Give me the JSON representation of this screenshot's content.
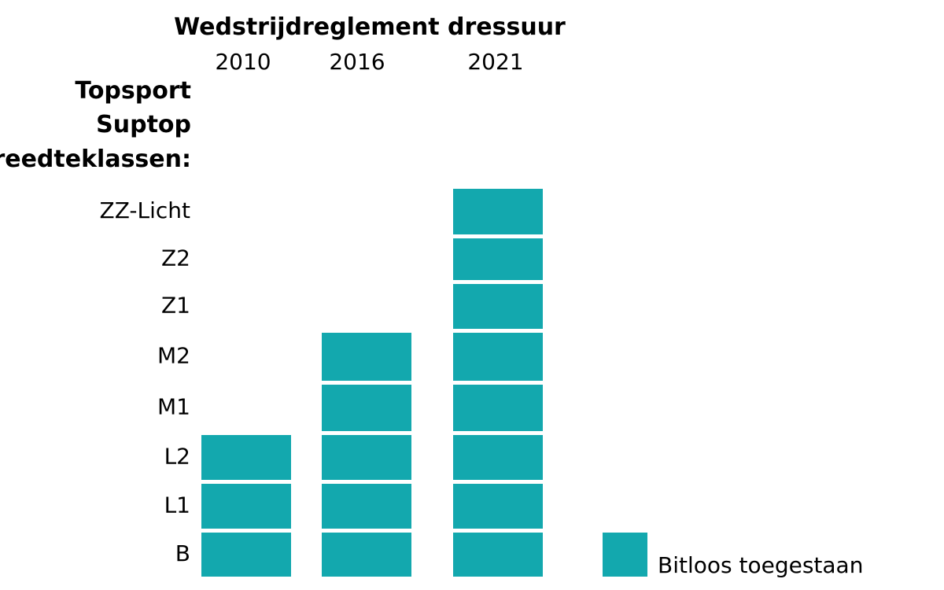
{
  "chart_data": {
    "type": "table",
    "title": "Wedstrijdreglement dressuur",
    "years": [
      "2010",
      "2016",
      "2021"
    ],
    "group_labels": [
      "Topsport",
      "Suptop",
      "Breedteklassen:"
    ],
    "categories": [
      "B",
      "L1",
      "L2",
      "M1",
      "M2",
      "Z1",
      "Z2",
      "ZZ-Licht"
    ],
    "allowed_by_year": {
      "2010": [
        "B",
        "L1",
        "L2"
      ],
      "2016": [
        "B",
        "L1",
        "L2",
        "M1",
        "M2"
      ],
      "2021": [
        "B",
        "L1",
        "L2",
        "M1",
        "M2",
        "Z1",
        "Z2",
        "ZZ-Licht"
      ]
    },
    "legend": [
      {
        "label": "Bitloos toegestaan",
        "color": "#13a8ae"
      }
    ],
    "grid": false
  }
}
